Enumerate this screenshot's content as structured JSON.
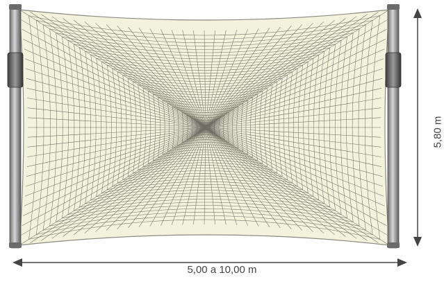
{
  "diagram": {
    "width_dimension": "5,00 a 10,00 m",
    "height_dimension": "5,80 m"
  },
  "colors": {
    "net_fill": "#f3f3dd",
    "net_line": "#6f6f66",
    "post": "#8d8d8d",
    "post_dark": "#555555",
    "dimension_line": "#444444"
  }
}
